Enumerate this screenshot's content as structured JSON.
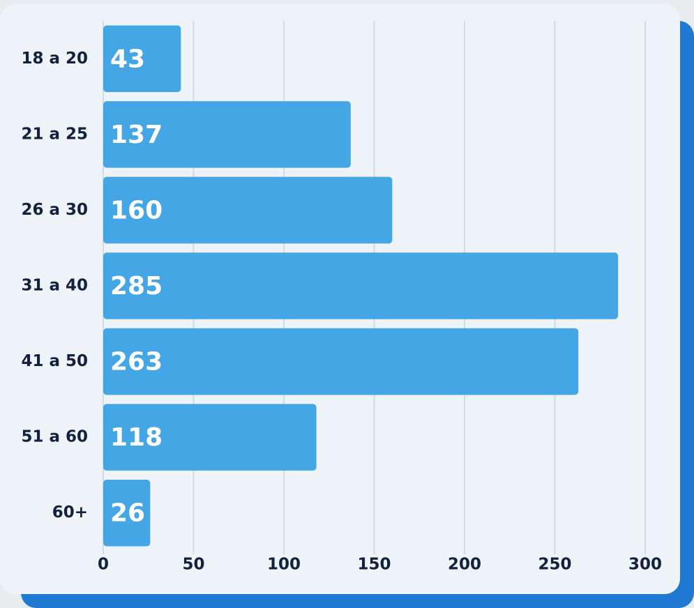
{
  "chart_data": {
    "type": "bar",
    "orientation": "horizontal",
    "categories": [
      "18 a 20",
      "21 a 25",
      "26 a 30",
      "31 a 40",
      "41 a 50",
      "51 a 60",
      "60+"
    ],
    "values": [
      43,
      137,
      160,
      285,
      263,
      118,
      26
    ],
    "color": "#45a6e6",
    "xlim": [
      0,
      300
    ],
    "xticks": [
      0,
      50,
      100,
      150,
      200,
      250,
      300
    ],
    "grid": true
  }
}
